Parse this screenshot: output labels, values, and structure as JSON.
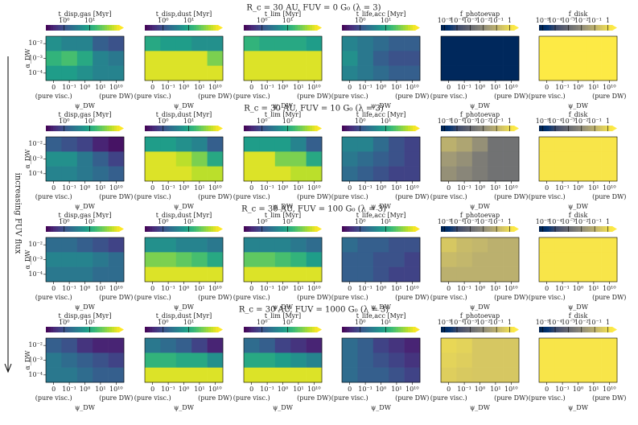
{
  "chart_data": {
    "type": "heatmap",
    "side_label": "increasing FUV flux",
    "x_categories": [
      "0",
      "10⁻¹",
      "10⁰",
      "10¹",
      "10¹⁰"
    ],
    "x_left_note": "(pure visc.)",
    "x_right_note": "(pure DW)",
    "xlabel": "ψ_DW",
    "y_categories": [
      "10⁻²",
      "10⁻³",
      "10⁻⁴"
    ],
    "ylabel": "α_DW",
    "zlim": [
      0,
      1
    ],
    "viridis_ticks": [
      {
        "value": 0.25,
        "label": "10⁰"
      },
      {
        "value": 0.6,
        "label": "10¹"
      }
    ],
    "cividis_ticks": [
      {
        "value": 0.05,
        "label": "10⁻⁵"
      },
      {
        "value": 0.22,
        "label": "10⁻⁴"
      },
      {
        "value": 0.4,
        "label": "10⁻³"
      },
      {
        "value": 0.58,
        "label": "10⁻²"
      },
      {
        "value": 0.76,
        "label": "10⁻¹"
      },
      {
        "value": 0.94,
        "label": "1"
      }
    ],
    "rows": [
      {
        "title": "R_c = 30 AU, FUV = 0 G₀ (λ = 3)",
        "panels": [
          {
            "label": "t_disp,gas [Myr]",
            "cmap": "viridis",
            "values": [
              [
                0.5,
                0.45,
                0.45,
                0.3,
                0.25
              ],
              [
                0.65,
                0.7,
                0.6,
                0.45,
                0.4
              ],
              [
                0.55,
                0.55,
                0.5,
                0.45,
                0.45
              ]
            ]
          },
          {
            "label": "t_disp,dust [Myr]",
            "cmap": "viridis",
            "values": [
              [
                0.6,
                0.55,
                0.55,
                0.5,
                0.5
              ],
              [
                0.95,
                0.95,
                0.95,
                0.95,
                0.8
              ],
              [
                0.95,
                0.95,
                0.95,
                0.95,
                0.95
              ]
            ]
          },
          {
            "label": "t_lim [Myr]",
            "cmap": "viridis",
            "values": [
              [
                0.65,
                0.6,
                0.6,
                0.6,
                0.55
              ],
              [
                0.95,
                0.95,
                0.95,
                0.95,
                0.95
              ],
              [
                0.95,
                0.95,
                0.95,
                0.95,
                0.95
              ]
            ]
          },
          {
            "label": "t_life,acc [Myr]",
            "cmap": "viridis",
            "values": [
              [
                0.45,
                0.4,
                0.35,
                0.3,
                0.3
              ],
              [
                0.5,
                0.4,
                0.3,
                0.25,
                0.25
              ],
              [
                0.45,
                0.4,
                0.35,
                0.3,
                0.3
              ]
            ]
          },
          {
            "label": "f_photoevap",
            "cmap": "cividis",
            "values": [
              [
                0.05,
                0.05,
                0.05,
                0.05,
                0.05
              ],
              [
                0.05,
                0.05,
                0.05,
                0.05,
                0.05
              ],
              [
                0.05,
                0.05,
                0.05,
                0.05,
                0.05
              ]
            ]
          },
          {
            "label": "f_disk",
            "cmap": "cividis",
            "values": [
              [
                1,
                1,
                1,
                1,
                1
              ],
              [
                1,
                1,
                1,
                1,
                1
              ],
              [
                1,
                1,
                1,
                1,
                1
              ]
            ]
          }
        ]
      },
      {
        "title": "R_c = 30 AU, FUV = 10 G₀ (λ = 3)",
        "panels": [
          {
            "label": "t_disp,gas [Myr]",
            "cmap": "viridis",
            "values": [
              [
                0.3,
                0.25,
                0.2,
                0.1,
                0.05
              ],
              [
                0.5,
                0.5,
                0.4,
                0.3,
                0.2
              ],
              [
                0.45,
                0.45,
                0.4,
                0.35,
                0.3
              ]
            ]
          },
          {
            "label": "t_disp,dust [Myr]",
            "cmap": "viridis",
            "values": [
              [
                0.55,
                0.55,
                0.5,
                0.45,
                0.3
              ],
              [
                0.95,
                0.95,
                0.9,
                0.8,
                0.6
              ],
              [
                0.95,
                0.95,
                0.95,
                0.9,
                0.9
              ]
            ]
          },
          {
            "label": "t_lim [Myr]",
            "cmap": "viridis",
            "values": [
              [
                0.55,
                0.55,
                0.55,
                0.45,
                0.3
              ],
              [
                0.95,
                0.95,
                0.8,
                0.8,
                0.6
              ],
              [
                0.95,
                0.95,
                0.95,
                0.9,
                0.9
              ]
            ]
          },
          {
            "label": "t_life,acc [Myr]",
            "cmap": "viridis",
            "values": [
              [
                0.45,
                0.45,
                0.35,
                0.25,
                0.2
              ],
              [
                0.4,
                0.35,
                0.3,
                0.25,
                0.2
              ],
              [
                0.35,
                0.3,
                0.25,
                0.2,
                0.2
              ]
            ]
          },
          {
            "label": "f_photoevap",
            "cmap": "cividis",
            "values": [
              [
                0.75,
                0.7,
                0.6,
                0.45,
                0.45
              ],
              [
                0.65,
                0.6,
                0.5,
                0.45,
                0.45
              ],
              [
                0.6,
                0.55,
                0.5,
                0.45,
                0.45
              ]
            ]
          },
          {
            "label": "f_disk",
            "cmap": "cividis",
            "values": [
              [
                0.98,
                0.98,
                0.98,
                0.98,
                0.98
              ],
              [
                0.98,
                0.98,
                0.98,
                0.98,
                0.98
              ],
              [
                0.98,
                0.98,
                0.98,
                0.98,
                0.98
              ]
            ]
          }
        ]
      },
      {
        "title": "R_c = 30 AU, FUV = 100 G₀ (λ = 3)",
        "panels": [
          {
            "label": "t_disp,gas [Myr]",
            "cmap": "viridis",
            "values": [
              [
                0.35,
                0.35,
                0.3,
                0.25,
                0.2
              ],
              [
                0.45,
                0.45,
                0.45,
                0.4,
                0.35
              ],
              [
                0.4,
                0.4,
                0.4,
                0.35,
                0.35
              ]
            ]
          },
          {
            "label": "t_disp,dust [Myr]",
            "cmap": "viridis",
            "values": [
              [
                0.5,
                0.5,
                0.45,
                0.45,
                0.4
              ],
              [
                0.8,
                0.8,
                0.75,
                0.7,
                0.6
              ],
              [
                0.95,
                0.95,
                0.95,
                0.95,
                0.95
              ]
            ]
          },
          {
            "label": "t_lim [Myr]",
            "cmap": "viridis",
            "values": [
              [
                0.45,
                0.45,
                0.45,
                0.4,
                0.35
              ],
              [
                0.75,
                0.75,
                0.7,
                0.65,
                0.55
              ],
              [
                0.95,
                0.95,
                0.95,
                0.95,
                0.95
              ]
            ]
          },
          {
            "label": "t_life,acc [Myr]",
            "cmap": "viridis",
            "values": [
              [
                0.35,
                0.3,
                0.3,
                0.25,
                0.25
              ],
              [
                0.3,
                0.3,
                0.25,
                0.25,
                0.2
              ],
              [
                0.3,
                0.3,
                0.25,
                0.2,
                0.2
              ]
            ]
          },
          {
            "label": "f_photoevap",
            "cmap": "cividis",
            "values": [
              [
                0.85,
                0.8,
                0.78,
                0.75,
                0.75
              ],
              [
                0.8,
                0.78,
                0.75,
                0.75,
                0.75
              ],
              [
                0.75,
                0.75,
                0.75,
                0.75,
                0.75
              ]
            ]
          },
          {
            "label": "f_disk",
            "cmap": "cividis",
            "values": [
              [
                0.98,
                0.98,
                0.98,
                0.98,
                0.98
              ],
              [
                0.98,
                0.98,
                0.98,
                0.98,
                0.98
              ],
              [
                0.98,
                0.98,
                0.98,
                0.98,
                0.98
              ]
            ]
          }
        ]
      },
      {
        "title": "R_c = 30 AU, FUV = 1000 G₀ (λ = 3)",
        "panels": [
          {
            "label": "t_disp,gas [Myr]",
            "cmap": "viridis",
            "values": [
              [
                0.3,
                0.25,
                0.15,
                0.1,
                0.1
              ],
              [
                0.4,
                0.35,
                0.3,
                0.25,
                0.2
              ],
              [
                0.4,
                0.4,
                0.35,
                0.3,
                0.3
              ]
            ]
          },
          {
            "label": "t_disp,dust [Myr]",
            "cmap": "viridis",
            "values": [
              [
                0.4,
                0.35,
                0.3,
                0.2,
                0.1
              ],
              [
                0.65,
                0.65,
                0.6,
                0.6,
                0.5
              ],
              [
                0.95,
                0.95,
                0.95,
                0.95,
                0.95
              ]
            ]
          },
          {
            "label": "t_lim [Myr]",
            "cmap": "viridis",
            "values": [
              [
                0.35,
                0.3,
                0.2,
                0.15,
                0.1
              ],
              [
                0.6,
                0.6,
                0.55,
                0.5,
                0.45
              ],
              [
                0.95,
                0.95,
                0.95,
                0.95,
                0.95
              ]
            ]
          },
          {
            "label": "t_life,acc [Myr]",
            "cmap": "viridis",
            "values": [
              [
                0.35,
                0.3,
                0.2,
                0.15,
                0.1
              ],
              [
                0.35,
                0.3,
                0.25,
                0.2,
                0.15
              ],
              [
                0.35,
                0.3,
                0.3,
                0.25,
                0.2
              ]
            ]
          },
          {
            "label": "f_photoevap",
            "cmap": "cividis",
            "values": [
              [
                0.92,
                0.9,
                0.85,
                0.85,
                0.85
              ],
              [
                0.9,
                0.88,
                0.85,
                0.85,
                0.85
              ],
              [
                0.88,
                0.86,
                0.85,
                0.85,
                0.85
              ]
            ]
          },
          {
            "label": "f_disk",
            "cmap": "cividis",
            "values": [
              [
                0.98,
                0.98,
                0.98,
                0.98,
                0.98
              ],
              [
                0.98,
                0.98,
                0.98,
                0.98,
                0.98
              ],
              [
                0.98,
                0.98,
                0.98,
                0.98,
                0.98
              ]
            ]
          }
        ]
      }
    ]
  }
}
